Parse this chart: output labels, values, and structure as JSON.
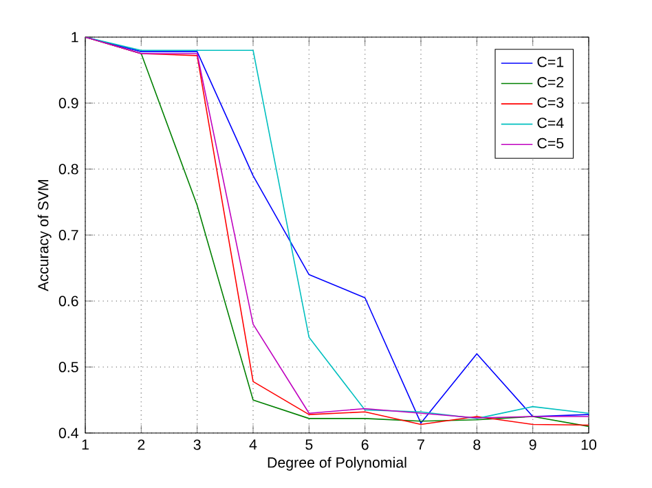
{
  "chart_data": {
    "type": "line",
    "xlabel": "Degree of Polynomial",
    "ylabel": "Accuracy of SVM",
    "x": [
      1,
      2,
      3,
      4,
      5,
      6,
      7,
      8,
      9,
      10
    ],
    "series": [
      {
        "name": "C=1",
        "color": "#0000ff",
        "values": [
          1,
          0.978,
          0.978,
          0.79,
          0.64,
          0.605,
          0.415,
          0.52,
          0.425,
          0.428
        ]
      },
      {
        "name": "C=2",
        "color": "#008000",
        "values": [
          1,
          0.975,
          0.745,
          0.45,
          0.422,
          0.422,
          0.418,
          0.42,
          0.425,
          0.41
        ]
      },
      {
        "name": "C=3",
        "color": "#ff0000",
        "values": [
          1,
          0.975,
          0.972,
          0.478,
          0.428,
          0.432,
          0.413,
          0.425,
          0.413,
          0.412
        ]
      },
      {
        "name": "C=4",
        "color": "#00bfbf",
        "values": [
          1,
          0.98,
          0.98,
          0.98,
          0.545,
          0.435,
          0.432,
          0.422,
          0.44,
          0.43
        ]
      },
      {
        "name": "C=5",
        "color": "#bf00bf",
        "values": [
          1,
          0.975,
          0.975,
          0.565,
          0.43,
          0.437,
          0.43,
          0.423,
          0.425,
          0.425
        ]
      }
    ],
    "xlim": [
      1,
      10
    ],
    "ylim": [
      0.4,
      1
    ],
    "xticks": [
      1,
      2,
      3,
      4,
      5,
      6,
      7,
      8,
      9,
      10
    ],
    "yticks": [
      0.4,
      0.5,
      0.6,
      0.7,
      0.8,
      0.9,
      1
    ],
    "grid": true,
    "legend": "top right",
    "marker": "none",
    "line_style": "solid"
  }
}
